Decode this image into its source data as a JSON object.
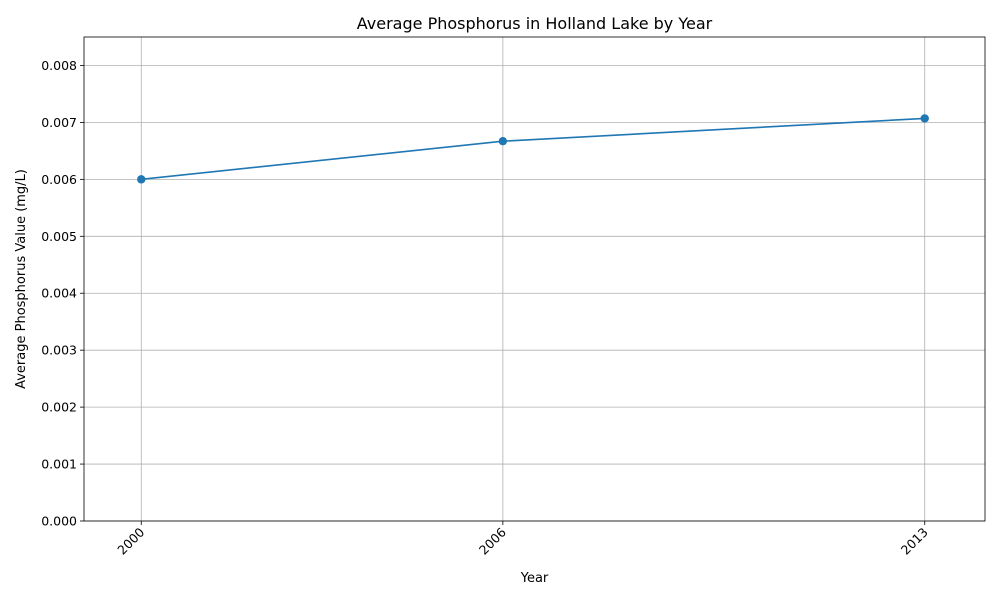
{
  "chart_data": {
    "type": "line",
    "title": "Average Phosphorus in Holland Lake by Year",
    "xlabel": "Year",
    "ylabel": "Average Phosphorus Value (mg/L)",
    "x": [
      2000,
      2006,
      2013
    ],
    "x_tick_labels": [
      "2000",
      "2006",
      "2013"
    ],
    "y_ticks": [
      0.0,
      0.001,
      0.002,
      0.003,
      0.004,
      0.005,
      0.006,
      0.007,
      0.008
    ],
    "y_tick_labels": [
      "0.000",
      "0.001",
      "0.002",
      "0.003",
      "0.004",
      "0.005",
      "0.006",
      "0.007",
      "0.008"
    ],
    "ylim": [
      0.0,
      0.0085
    ],
    "xlim": [
      1999.05,
      2014.0
    ],
    "grid": true,
    "legend": "none",
    "series": [
      {
        "values": [
          0.006,
          0.00667,
          0.00707
        ],
        "color": "#1f77b4",
        "marker": "circle"
      }
    ]
  }
}
